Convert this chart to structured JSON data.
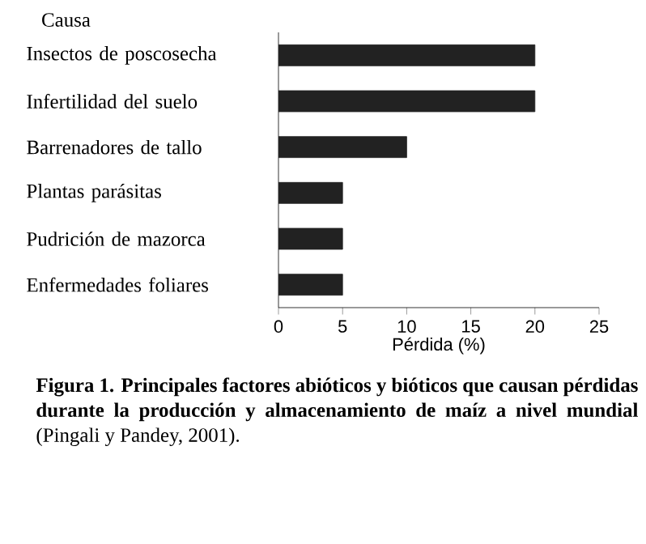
{
  "chart_data": {
    "type": "bar",
    "orientation": "horizontal",
    "ylabel": "Causa",
    "xlabel": "Pérdida (%)",
    "categories": [
      "Insectos de poscosecha",
      "Infertilidad del suelo",
      "Barrenadores de tallo",
      "Plantas parásitas",
      "Pudrición de mazorca",
      "Enfermedades foliares"
    ],
    "values": [
      20,
      20,
      10,
      5,
      5,
      5
    ],
    "color": "#222222",
    "xlim": [
      0,
      25
    ],
    "xticks": [
      0,
      5,
      10,
      15,
      20,
      25
    ],
    "annotations": [
      "**Figura 1. Principales factores abióticos y bióticos que causan pérdidas durante la producción y almacenamiento de maíz a nivel mundial** (Pingali y Pandey, 2001)."
    ]
  }
}
